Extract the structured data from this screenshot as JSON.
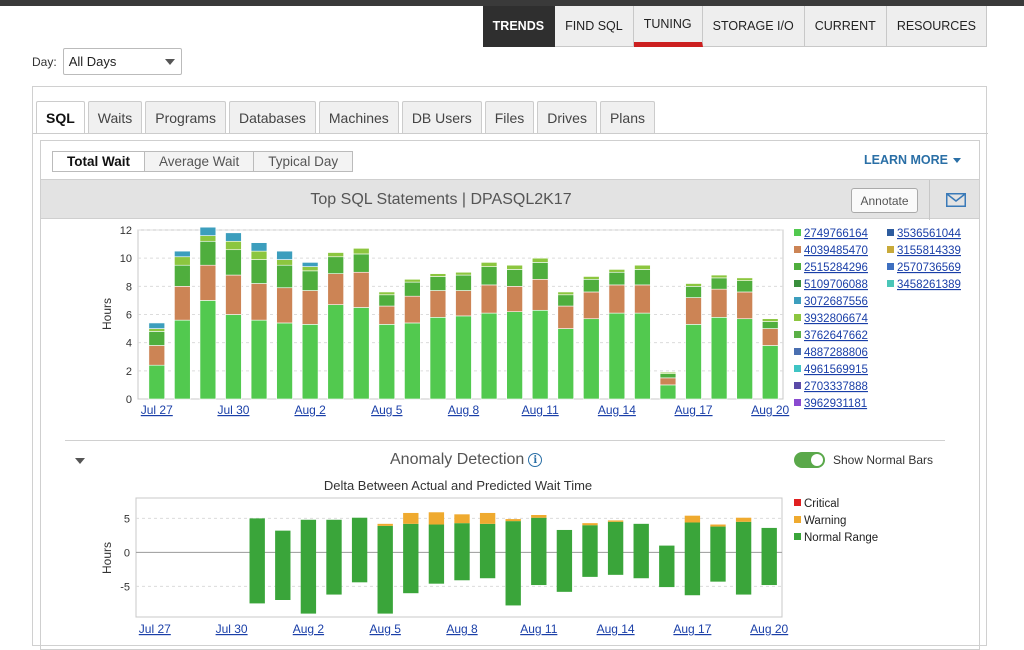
{
  "nav": {
    "tabs": [
      {
        "label": "TRENDS",
        "active": true
      },
      {
        "label": "FIND SQL"
      },
      {
        "label": "TUNING"
      },
      {
        "label": "STORAGE I/O"
      },
      {
        "label": "CURRENT"
      },
      {
        "label": "RESOURCES"
      }
    ]
  },
  "day": {
    "label": "Day:",
    "value": "All Days"
  },
  "subtabs": [
    "SQL",
    "Waits",
    "Programs",
    "Databases",
    "Machines",
    "DB Users",
    "Files",
    "Drives",
    "Plans"
  ],
  "modes": [
    "Total Wait",
    "Average Wait",
    "Typical Day"
  ],
  "learn_more": "LEARN MORE",
  "chart_header": {
    "title": "Top SQL Statements   |   DPASQL2K17",
    "annotate": "Annotate"
  },
  "anomaly": {
    "title": "Anomaly Detection",
    "toggle_label": "Show Normal Bars",
    "subtitle": "Delta Between Actual and Predicted Wait Time"
  },
  "colors": {
    "s1": "#52c94f",
    "s2": "#cc8455",
    "s3": "#4fae3d",
    "s4": "#388e3c",
    "s5": "#3c9ebd",
    "s6": "#8cc63f",
    "s7": "#5ab046",
    "s8": "#4a6fb0",
    "critical": "#e02020",
    "warning": "#efaa2f",
    "normal": "#3aa53a"
  },
  "chart_data": [
    {
      "type": "bar",
      "stacked": true,
      "title": "Top SQL Statements",
      "ylabel": "Hours",
      "ylim": [
        0,
        12
      ],
      "yticks": [
        0,
        2,
        4,
        6,
        8,
        10,
        12
      ],
      "xtick_labels": [
        "Jul 27",
        "Jul 30",
        "Aug 2",
        "Aug 5",
        "Aug 8",
        "Aug 11",
        "Aug 14",
        "Aug 17",
        "Aug 20"
      ],
      "categories": [
        "Jul 27",
        "Jul 28",
        "Jul 29",
        "Jul 30",
        "Jul 31",
        "Aug 1",
        "Aug 2",
        "Aug 3",
        "Aug 4",
        "Aug 5",
        "Aug 6",
        "Aug 7",
        "Aug 8",
        "Aug 9",
        "Aug 10",
        "Aug 11",
        "Aug 12",
        "Aug 13",
        "Aug 14",
        "Aug 15",
        "Aug 16",
        "Aug 17",
        "Aug 18",
        "Aug 19",
        "Aug 20"
      ],
      "segments": [
        [
          2.4,
          1.4,
          1.0,
          0.2,
          0.4
        ],
        [
          5.6,
          2.4,
          1.5,
          0.6,
          0.4
        ],
        [
          7.0,
          2.5,
          1.7,
          0.4,
          0.6
        ],
        [
          6.0,
          2.8,
          1.8,
          0.6,
          0.6
        ],
        [
          5.6,
          2.6,
          1.7,
          0.6,
          0.6
        ],
        [
          5.4,
          2.5,
          1.6,
          0.4,
          0.6
        ],
        [
          5.3,
          2.4,
          1.4,
          0.3,
          0.3
        ],
        [
          6.7,
          2.2,
          1.2,
          0.3,
          0
        ],
        [
          6.5,
          2.5,
          1.3,
          0.4,
          0
        ],
        [
          5.3,
          1.3,
          0.8,
          0.2,
          0
        ],
        [
          5.4,
          1.9,
          1.0,
          0.2,
          0
        ],
        [
          5.8,
          1.9,
          1.0,
          0.2,
          0
        ],
        [
          5.9,
          1.8,
          1.1,
          0.2,
          0
        ],
        [
          6.1,
          2.0,
          1.3,
          0.3,
          0
        ],
        [
          6.2,
          1.8,
          1.2,
          0.3,
          0
        ],
        [
          6.3,
          2.2,
          1.2,
          0.3,
          0
        ],
        [
          5.0,
          1.6,
          0.8,
          0.2,
          0
        ],
        [
          5.7,
          1.9,
          0.9,
          0.2,
          0
        ],
        [
          6.1,
          2.0,
          0.9,
          0.2,
          0
        ],
        [
          6.1,
          2.0,
          1.1,
          0.3,
          0
        ],
        [
          1.0,
          0.5,
          0.3,
          0.1,
          0
        ],
        [
          5.3,
          1.9,
          0.8,
          0.2,
          0
        ],
        [
          5.8,
          2.0,
          0.8,
          0.2,
          0
        ],
        [
          5.7,
          1.9,
          0.8,
          0.2,
          0
        ],
        [
          3.8,
          1.2,
          0.5,
          0.2,
          0
        ]
      ],
      "legend": [
        {
          "name": "2749766164",
          "color": "#52c94f"
        },
        {
          "name": "4039485470",
          "color": "#cc8455"
        },
        {
          "name": "2515284296",
          "color": "#4fae3d"
        },
        {
          "name": "5109706088",
          "color": "#388e3c"
        },
        {
          "name": "3072687556",
          "color": "#3c9ebd"
        },
        {
          "name": "3932806674",
          "color": "#8cc63f"
        },
        {
          "name": "3762647662",
          "color": "#5ab046"
        },
        {
          "name": "4887288806",
          "color": "#4a6fb0"
        },
        {
          "name": "4961569915",
          "color": "#3fc4c4"
        },
        {
          "name": "2703337888",
          "color": "#5a4aa8"
        },
        {
          "name": "3962931181",
          "color": "#8a4ad0"
        },
        {
          "name": "3536561044",
          "color": "#2e5c9e"
        },
        {
          "name": "3155814339",
          "color": "#c8aa3a"
        },
        {
          "name": "2570736569",
          "color": "#3e6fc0"
        },
        {
          "name": "3458261389",
          "color": "#4ac6b8"
        }
      ]
    },
    {
      "type": "bar",
      "title": "Delta Between Actual and Predicted Wait Time",
      "ylabel": "Hours",
      "ylim": [
        -9.5,
        8
      ],
      "yticks": [
        5,
        0,
        -5
      ],
      "xtick_labels": [
        "Jul 27",
        "Jul 30",
        "Aug 2",
        "Aug 5",
        "Aug 8",
        "Aug 11",
        "Aug 14",
        "Aug 17",
        "Aug 20"
      ],
      "bars": [
        null,
        null,
        null,
        null,
        {
          "low": -7.5,
          "high": 5.0,
          "warn": 0
        },
        {
          "low": -7.0,
          "high": 3.2,
          "warn": 0
        },
        {
          "low": -9.0,
          "high": 4.8,
          "warn": 0
        },
        {
          "low": -6.2,
          "high": 4.8,
          "warn": 0
        },
        {
          "low": -4.4,
          "high": 5.1,
          "warn": 0
        },
        {
          "low": -9.0,
          "high": 4.2,
          "warn": 0.3
        },
        {
          "low": -6.0,
          "high": 5.8,
          "warn": 1.6
        },
        {
          "low": -4.6,
          "high": 5.9,
          "warn": 1.8
        },
        {
          "low": -4.1,
          "high": 5.6,
          "warn": 1.3
        },
        {
          "low": -3.8,
          "high": 5.8,
          "warn": 1.6
        },
        {
          "low": -7.8,
          "high": 4.9,
          "warn": 0.3
        },
        {
          "low": -4.8,
          "high": 5.5,
          "warn": 0.4
        },
        {
          "low": -5.8,
          "high": 3.3,
          "warn": 0
        },
        {
          "low": -3.6,
          "high": 4.3,
          "warn": 0.3
        },
        {
          "low": -3.3,
          "high": 4.7,
          "warn": 0.2
        },
        {
          "low": -3.8,
          "high": 4.2,
          "warn": 0
        },
        {
          "low": -5.1,
          "high": 1.0,
          "warn": 0
        },
        {
          "low": -6.3,
          "high": 5.4,
          "warn": 1.0
        },
        {
          "low": -4.3,
          "high": 4.1,
          "warn": 0.3
        },
        {
          "low": -6.2,
          "high": 5.1,
          "warn": 0.6
        },
        {
          "low": -4.8,
          "high": 3.6,
          "warn": 0
        }
      ],
      "legend": [
        {
          "name": "Critical",
          "color": "#e02020"
        },
        {
          "name": "Warning",
          "color": "#efaa2f"
        },
        {
          "name": "Normal Range",
          "color": "#3aa53a"
        }
      ]
    }
  ]
}
